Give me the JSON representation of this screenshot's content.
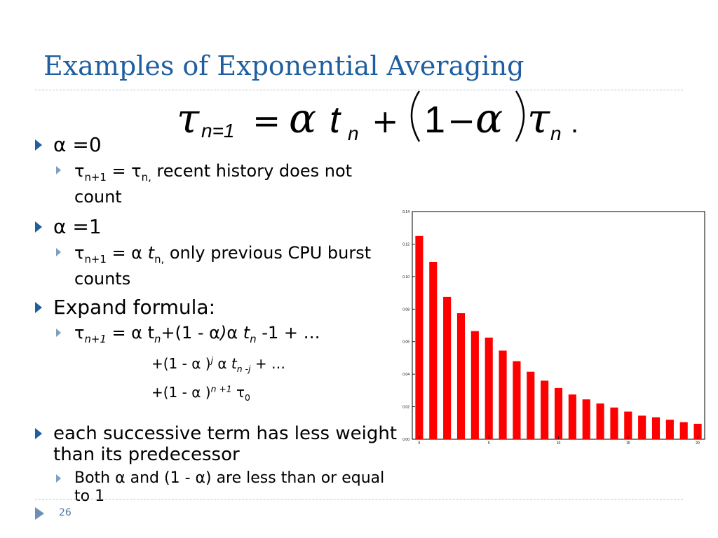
{
  "slide": {
    "title": "Examples of Exponential Averaging",
    "page_number": "26"
  },
  "formula": {
    "tau": "τ",
    "n1_sub": "n=1",
    "equals": "=",
    "alpha": "α",
    "t": "t",
    "n_sub": "n",
    "plus": "+",
    "one": "1",
    "minus": "−",
    "period": "."
  },
  "bullets": {
    "b1_label": "α =0",
    "b1_sub": "τn+1 = τn, recent history does not count",
    "b2_label": "α =1",
    "b2_sub": "τn+1 = α tn, only previous CPU burst counts",
    "b3_label": "Expand formula:",
    "b3_sub1": "τn+1 = α tn+(1 - α)α tn -1 + …",
    "b3_sub2": "+(1 - α )j α tn -j + …",
    "b3_sub3": "+(1 - α )n +1 τ0",
    "b4_label": "each successive term has less weight than its predecessor",
    "b4_sub": "Both α and (1 - α) are less than or equal to 1"
  },
  "chart_data": {
    "type": "bar",
    "title": "",
    "xlabel": "",
    "ylabel": "",
    "color": "#ff0000",
    "x": [
      0,
      1,
      2,
      3,
      4,
      5,
      6,
      7,
      8,
      9,
      10,
      11,
      12,
      13,
      14,
      15,
      16,
      17,
      18,
      19,
      20
    ],
    "values": [
      0.125,
      0.109,
      0.0875,
      0.0775,
      0.0665,
      0.0625,
      0.0545,
      0.048,
      0.0415,
      0.036,
      0.0315,
      0.0275,
      0.0245,
      0.022,
      0.0195,
      0.017,
      0.0145,
      0.0135,
      0.012,
      0.0105,
      0.0095
    ],
    "xticks": [
      "0",
      "5",
      "10",
      "15",
      "20"
    ],
    "yticks": [
      "0.00",
      "0.02",
      "0.04",
      "0.06",
      "0.08",
      "0.10",
      "0.12",
      "0.14"
    ],
    "ylim": [
      0,
      0.14
    ],
    "xlim": [
      -0.5,
      20.5
    ]
  }
}
